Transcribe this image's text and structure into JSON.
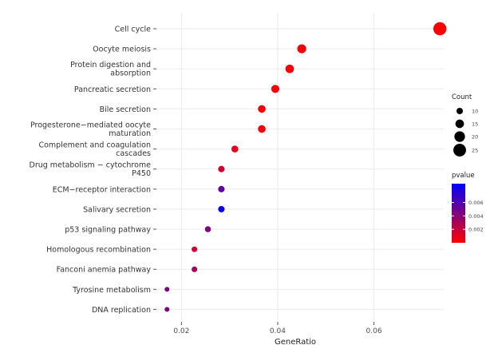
{
  "chart_data": {
    "type": "scatter",
    "title": "",
    "xlabel": "GeneRatio",
    "ylabel": "",
    "xlim": [
      0.0148,
      0.0745
    ],
    "x_ticks": [
      "0.02",
      "0.04",
      "0.06"
    ],
    "x_tick_values": [
      0.02,
      0.04,
      0.06
    ],
    "grid": true,
    "categories": [
      "Cell cycle",
      "Oocyte meiosis",
      "Protein digestion and\nabsorption",
      "Pancreatic secretion",
      "Bile secretion",
      "Progesterone−mediated oocyte\nmaturation",
      "Complement and coagulation\ncascades",
      "Drug metabolism − cytochrome\nP450",
      "ECM−receptor interaction",
      "Salivary secretion",
      "p53 signaling pathway",
      "Homologous recombination",
      "Fanconi anemia pathway",
      "Tyrosine metabolism",
      "DNA replication"
    ],
    "points": [
      {
        "category": "Cell cycle",
        "x": 0.0737,
        "count": 26,
        "pvalue": 0.0001
      },
      {
        "category": "Oocyte meiosis",
        "x": 0.045,
        "count": 16,
        "pvalue": 0.0002
      },
      {
        "category": "Protein digestion and\nabsorption",
        "x": 0.0425,
        "count": 15,
        "pvalue": 0.0003
      },
      {
        "category": "Pancreatic secretion",
        "x": 0.0395,
        "count": 14,
        "pvalue": 0.0003
      },
      {
        "category": "Bile secretion",
        "x": 0.0367,
        "count": 13,
        "pvalue": 0.0004
      },
      {
        "category": "Progesterone−mediated oocyte\nmaturation",
        "x": 0.0367,
        "count": 13,
        "pvalue": 0.0004
      },
      {
        "category": "Complement and coagulation\ncascades",
        "x": 0.0311,
        "count": 11,
        "pvalue": 0.0009
      },
      {
        "category": "Drug metabolism − cytochrome\nP450",
        "x": 0.0283,
        "count": 10,
        "pvalue": 0.0017
      },
      {
        "category": "ECM−receptor interaction",
        "x": 0.0283,
        "count": 10,
        "pvalue": 0.0055
      },
      {
        "category": "Salivary secretion",
        "x": 0.0283,
        "count": 10,
        "pvalue": 0.0083
      },
      {
        "category": "p53 signaling pathway",
        "x": 0.0255,
        "count": 9,
        "pvalue": 0.0046
      },
      {
        "category": "Homologous recombination",
        "x": 0.0227,
        "count": 8,
        "pvalue": 0.0018
      },
      {
        "category": "Fanconi anemia pathway",
        "x": 0.0227,
        "count": 8,
        "pvalue": 0.003
      },
      {
        "category": "Tyrosine metabolism",
        "x": 0.017,
        "count": 6,
        "pvalue": 0.0045
      },
      {
        "category": "DNA replication",
        "x": 0.017,
        "count": 6,
        "pvalue": 0.0045
      }
    ],
    "legend_placement": "right",
    "size_legend": {
      "title": "Count",
      "values": [
        10,
        15,
        20,
        25
      ],
      "labels": [
        "10",
        "15",
        "20",
        "25"
      ]
    },
    "color_legend": {
      "title": "pvalue",
      "range": [
        0,
        0.0088
      ],
      "values": [
        0.002,
        0.004,
        0.006
      ],
      "labels": [
        "0.002",
        "0.004",
        "0.006"
      ],
      "low_color": "#ff0000",
      "high_color": "#0000ff"
    },
    "panel_background": "#ffffff",
    "grid_color": "#ebebeb"
  }
}
